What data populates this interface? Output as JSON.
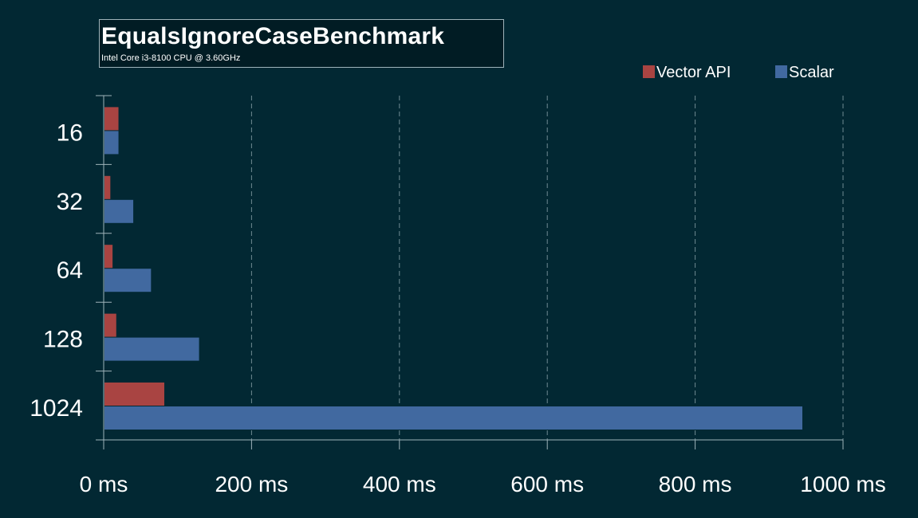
{
  "chart_data": {
    "type": "bar",
    "orientation": "horizontal",
    "title": "EqualsIgnoreCaseBenchmark",
    "subtitle": "Intel Core i3-8100 CPU @ 3.60GHz",
    "categories": [
      "16",
      "32",
      "64",
      "128",
      "1024"
    ],
    "series": [
      {
        "name": "Vector API",
        "color": "#a94442",
        "values": [
          20,
          9,
          12,
          17,
          82
        ]
      },
      {
        "name": "Scalar",
        "color": "#4169a0",
        "values": [
          20,
          40,
          64,
          129,
          945
        ]
      }
    ],
    "xlim": [
      0,
      1000
    ],
    "xticks": [
      0,
      200,
      400,
      600,
      800,
      1000
    ],
    "xtick_labels": [
      "0 ms",
      "200 ms",
      "400 ms",
      "600 ms",
      "800 ms",
      "1000 ms"
    ],
    "grid": true,
    "legend": "top-right",
    "colors": {
      "background": "#022833",
      "axis": "#9fb3ba",
      "grid": "#6f8a92"
    }
  }
}
